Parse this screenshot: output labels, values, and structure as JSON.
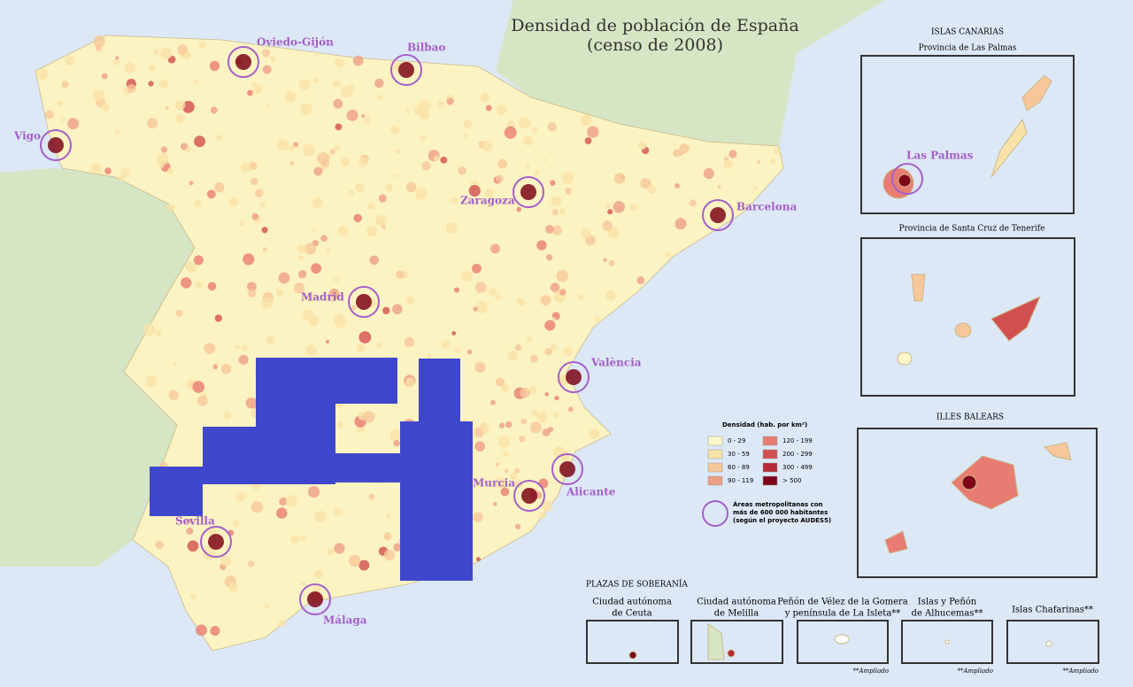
{
  "title": "Densidad de población de España",
  "subtitle": "(censo de 2008)",
  "cities": [
    "Oviedo-Gijón",
    "Bilbao",
    "Vigo",
    "Zaragoza",
    "Barcelona",
    "Madrid",
    "València",
    "Murcia",
    "Alicante",
    "Sevilla",
    "Málaga"
  ],
  "canarias": {
    "heading": "ISLAS CANARIAS",
    "las_palmas": "Provincia de Las Palmas",
    "santa_cruz": "Provincia de Santa Cruz de Tenerife",
    "city": "Las Palmas"
  },
  "baleares": "ILLES BALEARS",
  "legend": {
    "title": "Densidad (hab. por km²)",
    "classes": [
      "0 - 29",
      "30 - 59",
      "60 - 89",
      "90 - 119",
      "120 - 199",
      "200 - 299",
      "300 - 499",
      "> 500"
    ],
    "colors": [
      "#fdf6c8",
      "#f9e2a8",
      "#f6c79a",
      "#ee9f86",
      "#e87c72",
      "#d24f4f",
      "#b52a35",
      "#7d0618"
    ],
    "metro_note": [
      "Áreas metropolitanas con",
      "más de 600 000 habitantes",
      "(según el proyecto AUDES5)"
    ]
  },
  "plazas": {
    "heading": "PLAZAS DE SOBERANÍA",
    "items": [
      [
        "Ciudad autónoma",
        "de Ceuta"
      ],
      [
        "Ciudad autónoma",
        "de Melilla"
      ],
      [
        "Peñón de Vélez de la Gomera",
        "y península de La Isleta**"
      ],
      [
        "Islas y Peñón",
        "de Alhucemas**"
      ],
      [
        "Islas Chafarinas**"
      ]
    ],
    "ampliado": "**Ampliado"
  }
}
